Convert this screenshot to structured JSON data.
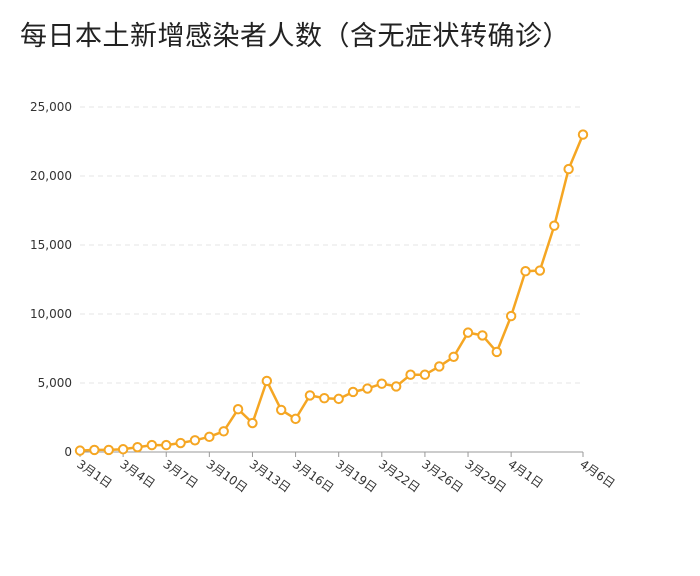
{
  "chart_data": {
    "type": "line",
    "title": "每日本土新增感染者人数（含无症状转确诊）",
    "xlabel": "",
    "ylabel": "",
    "ylim": [
      0,
      25000
    ],
    "yticks": [
      0,
      5000,
      10000,
      15000,
      20000,
      25000
    ],
    "ytick_labels": [
      "0",
      "5,000",
      "10,000",
      "15,000",
      "20,000",
      "25,000"
    ],
    "grid": true,
    "legend": "none",
    "color": "#F5A623",
    "x": [
      "3月1日",
      "3月2日",
      "3月3日",
      "3月4日",
      "3月5日",
      "3月6日",
      "3月7日",
      "3月8日",
      "3月9日",
      "3月10日",
      "3月11日",
      "3月12日",
      "3月13日",
      "3月14日",
      "3月15日",
      "3月16日",
      "3月17日",
      "3月18日",
      "3月19日",
      "3月20日",
      "3月21日",
      "3月22日",
      "3月23日",
      "3月24日",
      "3月26日",
      "3月27日",
      "3月28日",
      "3月29日",
      "3月30日",
      "3月31日",
      "4月1日",
      "4月2日",
      "4月3日",
      "4月4日",
      "4月5日",
      "4月6日"
    ],
    "values": [
      100,
      150,
      150,
      200,
      350,
      500,
      500,
      650,
      850,
      1100,
      1500,
      3100,
      2100,
      5150,
      3050,
      2400,
      4100,
      3900,
      3850,
      4350,
      4600,
      4950,
      4750,
      5600,
      5600,
      6200,
      6900,
      8650,
      8450,
      7250,
      9850,
      13100,
      13150,
      16400,
      20500,
      23000
    ],
    "xtick_labels": [
      {
        "index": 0,
        "label": "3月1日"
      },
      {
        "index": 3,
        "label": "3月4日"
      },
      {
        "index": 6,
        "label": "3月7日"
      },
      {
        "index": 9,
        "label": "3月10日"
      },
      {
        "index": 12,
        "label": "3月13日"
      },
      {
        "index": 15,
        "label": "3月16日"
      },
      {
        "index": 18,
        "label": "3月19日"
      },
      {
        "index": 21,
        "label": "3月22日"
      },
      {
        "index": 24,
        "label": "3月26日"
      },
      {
        "index": 27,
        "label": "3月29日"
      },
      {
        "index": 30,
        "label": "4月1日"
      },
      {
        "index": 35,
        "label": "4月6日"
      }
    ]
  }
}
